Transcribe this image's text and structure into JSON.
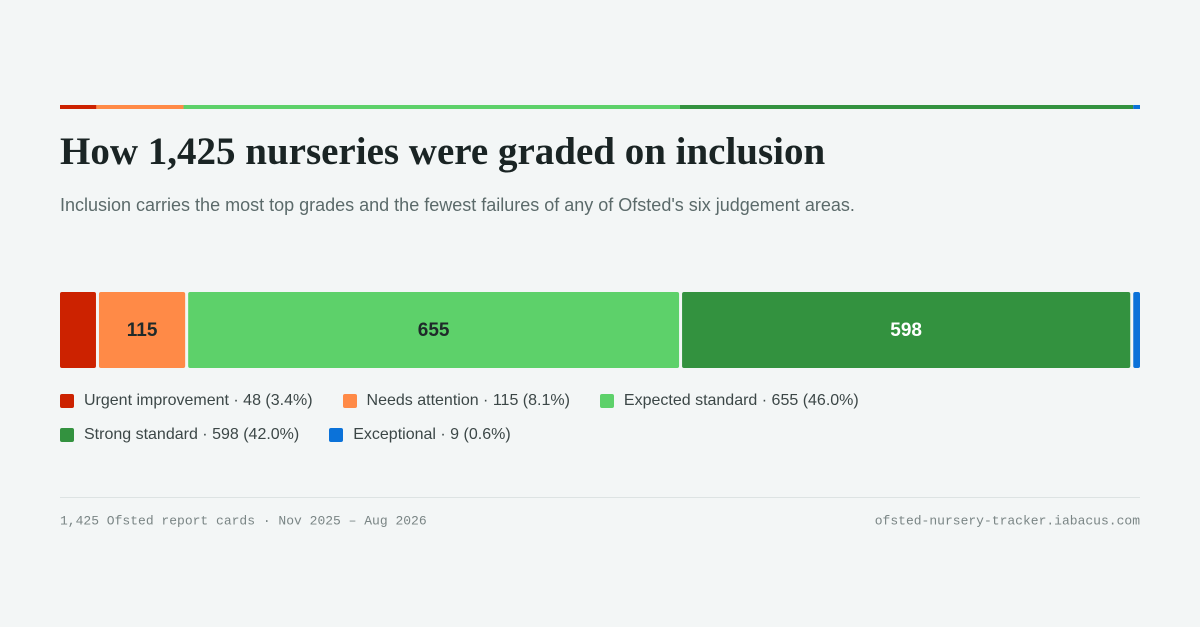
{
  "chart_data": {
    "type": "bar",
    "stacked": true,
    "orientation": "horizontal",
    "title": "How 1,425 nurseries were graded on inclusion",
    "subtitle": "Inclusion carries the most top grades and the fewest failures of any of Ofsted's six judgement areas.",
    "series": [
      {
        "name": "Urgent improvement · 48 (3.4%)",
        "color": "#cc2200",
        "values": [
          48
        ]
      },
      {
        "name": "Needs attention · 115 (8.1%)",
        "color": "#ff8a47",
        "values": [
          115
        ]
      },
      {
        "name": "Expected standard · 655 (46.0%)",
        "color": "#5dd16a",
        "values": [
          655
        ]
      },
      {
        "name": "Strong standard · 598 (42.0%)",
        "color": "#33923f",
        "values": [
          598
        ]
      },
      {
        "name": "Exceptional · 9 (0.6%)",
        "color": "#0b72d9",
        "values": [
          9
        ]
      }
    ],
    "footnote": "1,425 Ofsted report cards · Nov 2025 – Aug 2026",
    "source": "ofsted-nursery-tracker.iabacus.com"
  }
}
